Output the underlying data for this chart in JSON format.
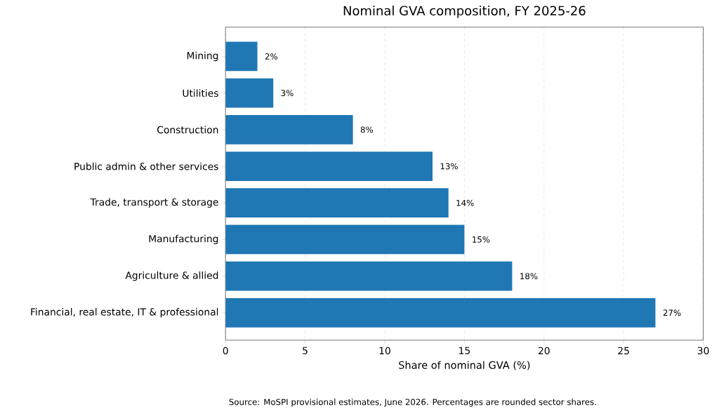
{
  "chart_data": {
    "type": "bar",
    "orientation": "horizontal",
    "title": "Nominal GVA composition, FY 2025-26",
    "xlabel": "Share of nominal GVA (%)",
    "categories": [
      "Mining",
      "Utilities",
      "Construction",
      "Public admin & other services",
      "Trade, transport & storage",
      "Manufacturing",
      "Agriculture & allied",
      "Financial, real estate, IT & professional"
    ],
    "values": [
      2,
      3,
      8,
      13,
      14,
      15,
      18,
      27
    ],
    "value_labels": [
      "2%",
      "3%",
      "8%",
      "13%",
      "14%",
      "15%",
      "18%",
      "27%"
    ],
    "color": "#1f77b4",
    "xlim": [
      0,
      30
    ],
    "xticks": [
      0,
      5,
      10,
      15,
      20,
      25,
      30
    ],
    "grid": "x",
    "annotations": [
      "Source: MoSPI provisional estimates, June 2026. Percentages are rounded sector shares."
    ]
  }
}
